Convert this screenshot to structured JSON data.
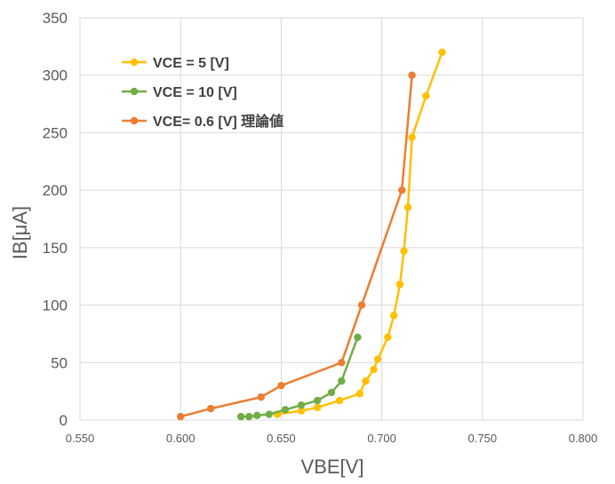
{
  "chart_data": {
    "type": "scatter",
    "xlabel": "VBE[V]",
    "ylabel": "IB[μA]",
    "xlim": [
      0.55,
      0.8
    ],
    "ylim": [
      0,
      350
    ],
    "x_ticks": [
      "0.550",
      "0.600",
      "0.650",
      "0.700",
      "0.750",
      "0.800"
    ],
    "y_ticks": [
      "0",
      "50",
      "100",
      "150",
      "200",
      "250",
      "300",
      "350"
    ],
    "grid": true,
    "legend": "top-left",
    "series": [
      {
        "name": "VCE = 5 [V]",
        "color": "#FFC000",
        "points": [
          [
            0.648,
            5
          ],
          [
            0.66,
            8
          ],
          [
            0.668,
            11
          ],
          [
            0.679,
            17
          ],
          [
            0.689,
            23
          ],
          [
            0.692,
            34
          ],
          [
            0.696,
            44
          ],
          [
            0.698,
            53
          ],
          [
            0.703,
            72
          ],
          [
            0.706,
            91
          ],
          [
            0.709,
            118
          ],
          [
            0.711,
            147
          ],
          [
            0.713,
            185
          ],
          [
            0.715,
            246
          ],
          [
            0.722,
            282
          ],
          [
            0.73,
            320
          ]
        ]
      },
      {
        "name": "VCE = 10 [V]",
        "color": "#70AD47",
        "points": [
          [
            0.63,
            3
          ],
          [
            0.634,
            3
          ],
          [
            0.638,
            4
          ],
          [
            0.644,
            5
          ],
          [
            0.652,
            9
          ],
          [
            0.66,
            13
          ],
          [
            0.668,
            17
          ],
          [
            0.675,
            24
          ],
          [
            0.68,
            34
          ],
          [
            0.688,
            72
          ]
        ]
      },
      {
        "name": "VCE= 0.6 [V] 理論値",
        "color": "#ED7D31",
        "points": [
          [
            0.6,
            3
          ],
          [
            0.615,
            10
          ],
          [
            0.64,
            20
          ],
          [
            0.65,
            30
          ],
          [
            0.68,
            50
          ],
          [
            0.69,
            100
          ],
          [
            0.71,
            200
          ],
          [
            0.715,
            300
          ]
        ]
      }
    ]
  }
}
